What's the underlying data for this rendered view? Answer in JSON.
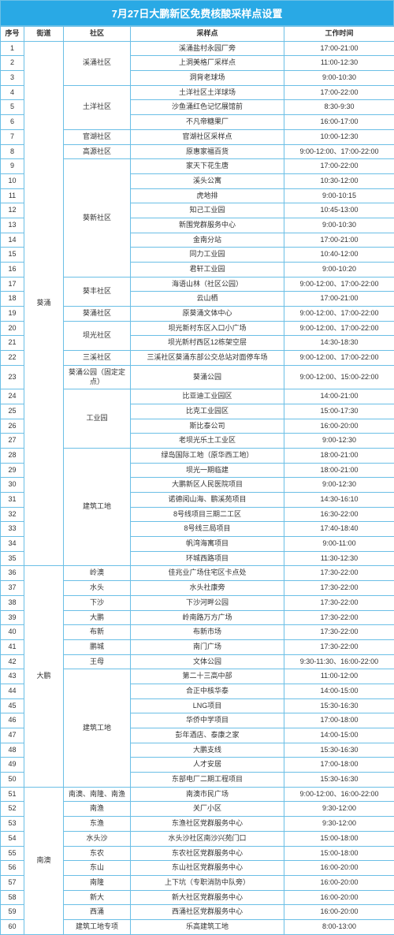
{
  "title": "7月27日大鹏新区免费核酸采样点设置",
  "columns": [
    "序号",
    "街道",
    "社区",
    "采样点",
    "工作时间"
  ],
  "streets": [
    {
      "name": "葵涌",
      "groups": [
        {
          "community": "溪涌社区",
          "rows": [
            {
              "n": 1,
              "s": "溪涌盐村永园厂旁",
              "t": "17:00-21:00"
            },
            {
              "n": 2,
              "s": "上洞美格厂采样点",
              "t": "11:00-12:30"
            },
            {
              "n": 3,
              "s": "洞背老球场",
              "t": "9:00-10:30"
            }
          ]
        },
        {
          "community": "土洋社区",
          "rows": [
            {
              "n": 4,
              "s": "土洋社区土洋球场",
              "t": "17:00-22:00"
            },
            {
              "n": 5,
              "s": "沙鱼涌红色记忆展馆前",
              "t": "8:30-9:30"
            },
            {
              "n": 6,
              "s": "不凡帝糖果厂",
              "t": "16:00-17:00"
            }
          ]
        },
        {
          "community": "官湖社区",
          "rows": [
            {
              "n": 7,
              "s": "官湖社区采样点",
              "t": "10:00-12:30"
            }
          ]
        },
        {
          "community": "高源社区",
          "rows": [
            {
              "n": 8,
              "s": "原惠家福百货",
              "t": "9:00-12:00、17:00-22:00"
            }
          ]
        },
        {
          "community": "葵新社区",
          "rows": [
            {
              "n": 9,
              "s": "家天下花生唐",
              "t": "17:00-22:00"
            },
            {
              "n": 10,
              "s": "溪头公寓",
              "t": "10:30-12:00"
            },
            {
              "n": 11,
              "s": "虎地排",
              "t": "9:00-10:15"
            },
            {
              "n": 12,
              "s": "知己工业园",
              "t": "10:45-13:00"
            },
            {
              "n": 13,
              "s": "新围党群服务中心",
              "t": "9:00-10:30"
            },
            {
              "n": 14,
              "s": "金南分站",
              "t": "17:00-21:00"
            },
            {
              "n": 15,
              "s": "同力工业园",
              "t": "10:40-12:00"
            },
            {
              "n": 16,
              "s": "君轩工业园",
              "t": "9:00-10:20"
            }
          ]
        },
        {
          "community": "葵丰社区",
          "rows": [
            {
              "n": 17,
              "s": "海语山林（社区公园）",
              "t": "9:00-12:00、17:00-22:00"
            },
            {
              "n": 18,
              "s": "云山栖",
              "t": "17:00-21:00"
            }
          ]
        },
        {
          "community": "葵涌社区",
          "rows": [
            {
              "n": 19,
              "s": "原葵涌文体中心",
              "t": "9:00-12:00、17:00-22:00"
            }
          ]
        },
        {
          "community": "坝光社区",
          "rows": [
            {
              "n": 20,
              "s": "坝光新村东区入口小广场",
              "t": "9:00-12:00、17:00-22:00"
            },
            {
              "n": 21,
              "s": "坝光新村西区12栋架空层",
              "t": "14:30-18:30"
            }
          ]
        },
        {
          "community": "三溪社区",
          "rows": [
            {
              "n": 22,
              "s": "三溪社区葵涌东部公交总站对面停车场",
              "t": "9:00-12:00、17:00-22:00"
            }
          ]
        },
        {
          "community": "葵涌公园（固定定点）",
          "rows": [
            {
              "n": 23,
              "s": "葵涌公园",
              "t": "9:00-12:00、15:00-22:00"
            }
          ]
        },
        {
          "community": "工业园",
          "rows": [
            {
              "n": 24,
              "s": "比亚迪工业园区",
              "t": "14:00-21:00"
            },
            {
              "n": 25,
              "s": "比克工业园区",
              "t": "15:00-17:30"
            },
            {
              "n": 26,
              "s": "斯比泰公司",
              "t": "16:00-20:00"
            },
            {
              "n": 27,
              "s": "老坝光乐土工业区",
              "t": "9:00-12:30"
            }
          ]
        },
        {
          "community": "建筑工地",
          "rows": [
            {
              "n": 28,
              "s": "绿岛国际工地（原华西工地）",
              "t": "18:00-21:00"
            },
            {
              "n": 29,
              "s": "坝光一期临建",
              "t": "18:00-21:00"
            },
            {
              "n": 30,
              "s": "大鹏新区人民医院项目",
              "t": "9:00-12:30"
            },
            {
              "n": 31,
              "s": "诺德阅山海、鹏溪苑项目",
              "t": "14:30-16:10"
            },
            {
              "n": 32,
              "s": "8号线项目三期二工区",
              "t": "16:30-22:00"
            },
            {
              "n": 33,
              "s": "8号线三局项目",
              "t": "17:40-18:40"
            },
            {
              "n": 34,
              "s": "帆湾海寓项目",
              "t": "9:00-11:00"
            },
            {
              "n": 35,
              "s": "环城西路项目",
              "t": "11:30-12:30"
            }
          ]
        }
      ]
    },
    {
      "name": "大鹏",
      "groups": [
        {
          "community": "岭澳",
          "rows": [
            {
              "n": 36,
              "s": "佳兆业广场住宅区卡点处",
              "t": "17:30-22:00"
            }
          ]
        },
        {
          "community": "水头",
          "rows": [
            {
              "n": 37,
              "s": "水头社康旁",
              "t": "17:30-22:00"
            }
          ]
        },
        {
          "community": "下沙",
          "rows": [
            {
              "n": 38,
              "s": "下沙河畔公园",
              "t": "17:30-22:00"
            }
          ]
        },
        {
          "community": "大鹏",
          "rows": [
            {
              "n": 39,
              "s": "岭南路万方广场",
              "t": "17:30-22:00"
            }
          ]
        },
        {
          "community": "布新",
          "rows": [
            {
              "n": 40,
              "s": "布新市场",
              "t": "17:30-22:00"
            }
          ]
        },
        {
          "community": "鹏城",
          "rows": [
            {
              "n": 41,
              "s": "南门广场",
              "t": "17:30-22:00"
            }
          ]
        },
        {
          "community": "王母",
          "rows": [
            {
              "n": 42,
              "s": "文体公园",
              "t": "9:30-11:30、16:00-22:00"
            }
          ]
        },
        {
          "community": "建筑工地",
          "rows": [
            {
              "n": 43,
              "s": "第二十三高中部",
              "t": "11:00-12:00"
            },
            {
              "n": 44,
              "s": "合正中核华泰",
              "t": "14:00-15:00"
            },
            {
              "n": 45,
              "s": "LNG项目",
              "t": "15:30-16:30"
            },
            {
              "n": 46,
              "s": "华侨中学项目",
              "t": "17:00-18:00"
            },
            {
              "n": 47,
              "s": "彭年酒店、泰康之家",
              "t": "14:00-15:00"
            },
            {
              "n": 48,
              "s": "大鹏支线",
              "t": "15:30-16:30"
            },
            {
              "n": 49,
              "s": "人才安居",
              "t": "17:00-18:00"
            },
            {
              "n": 50,
              "s": "东部电厂二期工程项目",
              "t": "15:30-16:30"
            }
          ]
        }
      ]
    },
    {
      "name": "南澳",
      "groups": [
        {
          "community": "南澳、南隆、南渔",
          "rows": [
            {
              "n": 51,
              "s": "南澳市民广场",
              "t": "9:00-12:00、16:00-22:00"
            }
          ]
        },
        {
          "community": "南渔",
          "rows": [
            {
              "n": 52,
              "s": "关厂小区",
              "t": "9:30-12:00"
            }
          ]
        },
        {
          "community": "东渔",
          "rows": [
            {
              "n": 53,
              "s": "东渔社区党群服务中心",
              "t": "9:30-12:00"
            }
          ]
        },
        {
          "community": "水头沙",
          "rows": [
            {
              "n": 54,
              "s": "水头沙社区南沙兴苑门口",
              "t": "15:00-18:00"
            }
          ]
        },
        {
          "community": "东农",
          "rows": [
            {
              "n": 55,
              "s": "东农社区党群服务中心",
              "t": "15:00-18:00"
            }
          ]
        },
        {
          "community": "东山",
          "rows": [
            {
              "n": 56,
              "s": "东山社区党群服务中心",
              "t": "16:00-20:00"
            }
          ]
        },
        {
          "community": "南隆",
          "rows": [
            {
              "n": 57,
              "s": "上下坑（专职消防中队旁）",
              "t": "16:00-20:00"
            }
          ]
        },
        {
          "community": "新大",
          "rows": [
            {
              "n": 58,
              "s": "新大社区党群服务中心",
              "t": "16:00-20:00"
            }
          ]
        },
        {
          "community": "西涌",
          "rows": [
            {
              "n": 59,
              "s": "西涌社区党群服务中心",
              "t": "16:00-20:00"
            }
          ]
        },
        {
          "community": "建筑工地专项",
          "rows": [
            {
              "n": 60,
              "s": "乐高建筑工地",
              "t": "8:00-13:00"
            }
          ]
        }
      ]
    }
  ]
}
